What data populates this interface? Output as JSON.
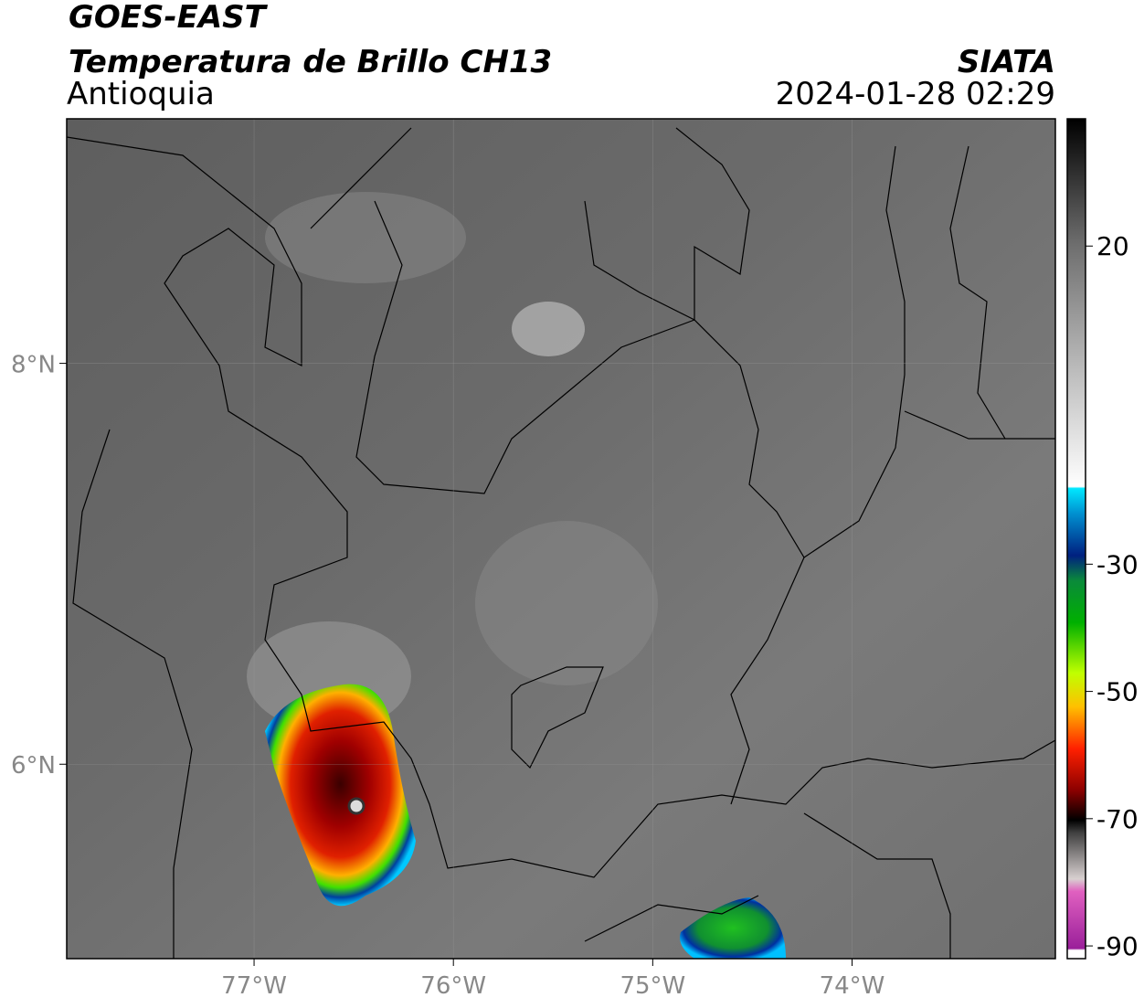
{
  "header": {
    "title": "GOES-EAST",
    "subtitle": "Temperatura de Brillo CH13",
    "region": "Antioquia",
    "source": "SIATA",
    "datetime": "2024-01-28 02:29"
  },
  "map": {
    "latlim": [
      5.03,
      9.22
    ],
    "lonlim": [
      -77.94,
      -72.98
    ],
    "lat_ticks": [
      {
        "value": 8,
        "label": "8°N"
      },
      {
        "value": 6,
        "label": "6°N"
      }
    ],
    "lon_ticks": [
      {
        "value": -77,
        "label": "77°W"
      },
      {
        "value": -76,
        "label": "76°W"
      },
      {
        "value": -75,
        "label": "75°W"
      },
      {
        "value": -74,
        "label": "74°W"
      }
    ],
    "grid": true
  },
  "colorbar": {
    "lim": [
      -92,
      40
    ],
    "ticks": [
      20,
      -30,
      -50,
      -70,
      -90
    ]
  }
}
